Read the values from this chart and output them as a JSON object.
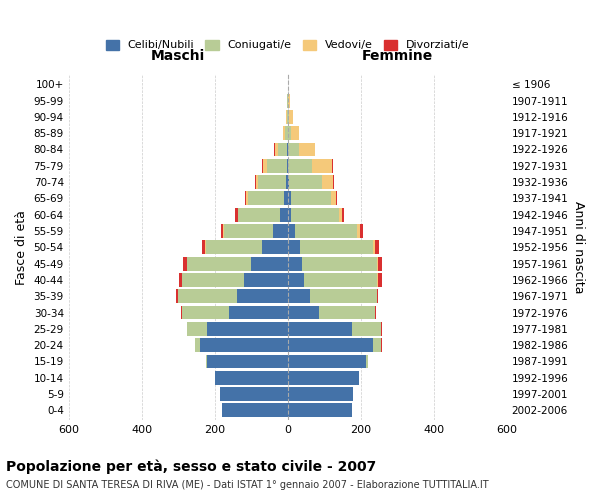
{
  "title": "Popolazione per età, sesso e stato civile - 2007",
  "subtitle": "COMUNE DI SANTA TERESA DI RIVA (ME) - Dati ISTAT 1° gennaio 2007 - Elaborazione TUTTITALIA.IT",
  "xlabel_left": "Maschi",
  "xlabel_right": "Femmine",
  "ylabel": "Fasce di età",
  "ylabel_right": "Anni di nascita",
  "age_groups": [
    "0-4",
    "5-9",
    "10-14",
    "15-19",
    "20-24",
    "25-29",
    "30-34",
    "35-39",
    "40-44",
    "45-49",
    "50-54",
    "55-59",
    "60-64",
    "65-69",
    "70-74",
    "75-79",
    "80-84",
    "85-89",
    "90-94",
    "95-99",
    "100+"
  ],
  "birth_years": [
    "2002-2006",
    "1997-2001",
    "1992-1996",
    "1987-1991",
    "1982-1986",
    "1977-1981",
    "1972-1976",
    "1967-1971",
    "1962-1966",
    "1957-1961",
    "1952-1956",
    "1947-1951",
    "1942-1946",
    "1937-1941",
    "1932-1936",
    "1927-1931",
    "1922-1926",
    "1917-1921",
    "1912-1916",
    "1907-1911",
    "≤ 1906"
  ],
  "colors": {
    "celibi": "#4472a8",
    "coniugati": "#b8cc96",
    "vedovi": "#f5c97a",
    "divorziati": "#d93030"
  },
  "legend": [
    "Celibi/Nubili",
    "Coniugati/e",
    "Vedovi/e",
    "Divorziati/e"
  ],
  "males": {
    "celibi": [
      180,
      185,
      200,
      220,
      240,
      220,
      160,
      140,
      120,
      100,
      70,
      40,
      20,
      10,
      5,
      2,
      1,
      0,
      0,
      0,
      0
    ],
    "coniugati": [
      0,
      0,
      0,
      5,
      15,
      55,
      130,
      160,
      170,
      175,
      155,
      135,
      115,
      100,
      75,
      55,
      25,
      8,
      3,
      1,
      0
    ],
    "vedovi": [
      0,
      0,
      0,
      0,
      0,
      0,
      0,
      0,
      0,
      0,
      2,
      2,
      2,
      4,
      6,
      12,
      10,
      5,
      2,
      1,
      0
    ],
    "divorziati": [
      0,
      0,
      0,
      0,
      0,
      0,
      2,
      5,
      8,
      12,
      8,
      5,
      8,
      3,
      4,
      2,
      1,
      0,
      0,
      0,
      0
    ]
  },
  "females": {
    "nubili": [
      175,
      180,
      195,
      215,
      235,
      175,
      85,
      60,
      45,
      40,
      35,
      20,
      10,
      8,
      4,
      2,
      1,
      0,
      0,
      0,
      0
    ],
    "coniugate": [
      0,
      0,
      0,
      5,
      20,
      80,
      155,
      185,
      200,
      205,
      200,
      170,
      130,
      110,
      90,
      65,
      30,
      10,
      4,
      1,
      0
    ],
    "vedove": [
      0,
      0,
      0,
      0,
      0,
      0,
      0,
      0,
      2,
      2,
      5,
      8,
      10,
      15,
      30,
      55,
      45,
      20,
      10,
      5,
      2
    ],
    "divorziate": [
      0,
      0,
      0,
      0,
      2,
      2,
      3,
      3,
      10,
      12,
      10,
      8,
      4,
      3,
      2,
      1,
      0,
      0,
      0,
      0,
      0
    ]
  },
  "xlim": 600,
  "xticks": [
    -600,
    -400,
    -200,
    0,
    200,
    400,
    600
  ],
  "xticklabels": [
    "600",
    "400",
    "200",
    "0",
    "200",
    "400",
    "600"
  ],
  "background": "#ffffff",
  "grid_color": "#cccccc"
}
